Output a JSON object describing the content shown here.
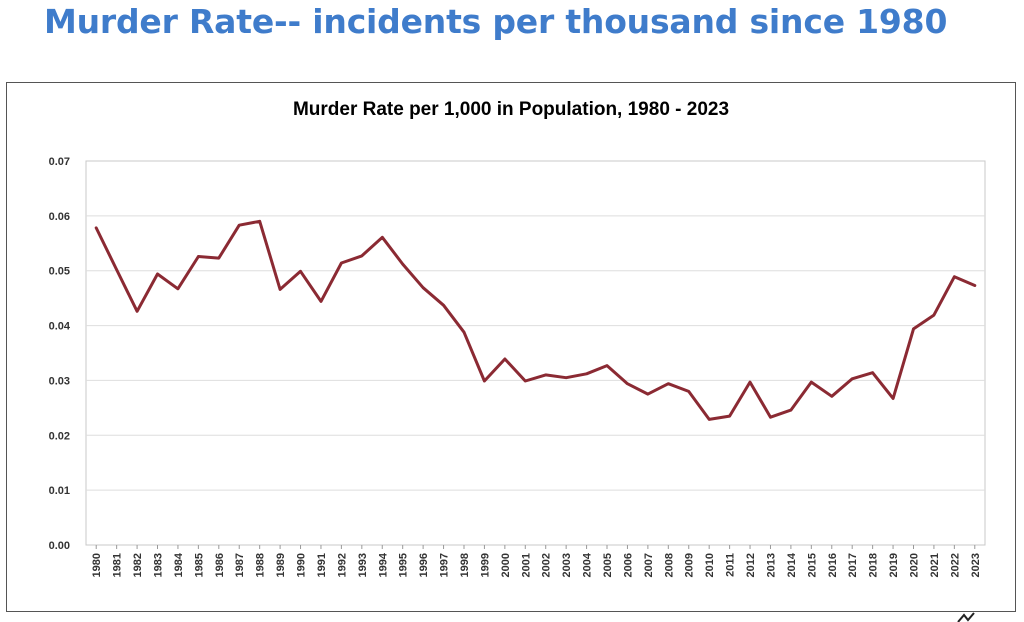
{
  "slide": {
    "title": "Murder Rate-- incidents per thousand since 1980"
  },
  "chart_data": {
    "type": "line",
    "title": "Murder Rate per 1,000 in Population, 1980 - 2023",
    "xlabel": "",
    "ylabel": "",
    "ylim": [
      0,
      0.07
    ],
    "yticks": [
      "0.00",
      "0.01",
      "0.02",
      "0.03",
      "0.04",
      "0.05",
      "0.06",
      "0.07"
    ],
    "grid": true,
    "legend": "none",
    "line_color": "#8b2a33",
    "categories": [
      "1980",
      "1981",
      "1982",
      "1983",
      "1984",
      "1985",
      "1986",
      "1987",
      "1988",
      "1989",
      "1990",
      "1991",
      "1992",
      "1993",
      "1994",
      "1995",
      "1996",
      "1997",
      "1998",
      "1999",
      "2000",
      "2001",
      "2002",
      "2003",
      "2004",
      "2005",
      "2006",
      "2007",
      "2008",
      "2009",
      "2010",
      "2011",
      "2012",
      "2013",
      "2014",
      "2015",
      "2016",
      "2017",
      "2018",
      "2019",
      "2020",
      "2021",
      "2022",
      "2023"
    ],
    "series": [
      {
        "name": "",
        "values": [
          0.0578,
          0.0502,
          0.0426,
          0.0494,
          0.0467,
          0.0526,
          0.0523,
          0.0583,
          0.059,
          0.0466,
          0.0499,
          0.0444,
          0.0514,
          0.0527,
          0.0561,
          0.0512,
          0.0469,
          0.0437,
          0.0388,
          0.0299,
          0.0339,
          0.0299,
          0.031,
          0.0305,
          0.0312,
          0.0327,
          0.0294,
          0.0275,
          0.0294,
          0.028,
          0.0229,
          0.0235,
          0.0297,
          0.0233,
          0.0246,
          0.0297,
          0.0271,
          0.0303,
          0.0314,
          0.0267,
          0.0394,
          0.0419,
          0.0489,
          0.0473
        ]
      }
    ]
  }
}
